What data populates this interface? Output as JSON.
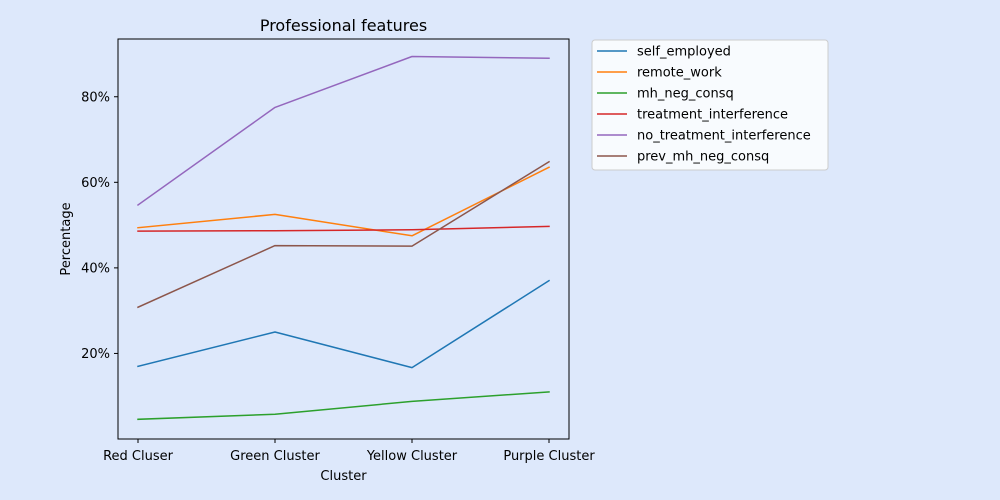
{
  "chart_data": {
    "type": "line",
    "title": "Professional features",
    "xlabel": "Cluster",
    "ylabel": "Percentage",
    "categories": [
      "Red Cluser",
      "Green Cluster",
      "Yellow Cluster",
      "Purple Cluster"
    ],
    "ylim": [
      0.0,
      0.935
    ],
    "yticks": [
      0.2,
      0.4,
      0.6,
      0.8
    ],
    "ytick_labels": [
      "20%",
      "40%",
      "60%",
      "80%"
    ],
    "grid": false,
    "legend_position": "outside-top-right",
    "series": [
      {
        "name": "self_employed",
        "color": "#1f77b4",
        "values": [
          0.17,
          0.25,
          0.167,
          0.37
        ]
      },
      {
        "name": "remote_work",
        "color": "#ff7f0e",
        "values": [
          0.494,
          0.525,
          0.475,
          0.635
        ]
      },
      {
        "name": "mh_neg_consq",
        "color": "#2ca02c",
        "values": [
          0.046,
          0.058,
          0.088,
          0.11
        ]
      },
      {
        "name": "treatment_interference",
        "color": "#d62728",
        "values": [
          0.486,
          0.487,
          0.489,
          0.497
        ]
      },
      {
        "name": "no_treatment_interference",
        "color": "#9467bd",
        "values": [
          0.547,
          0.775,
          0.894,
          0.89
        ]
      },
      {
        "name": "prev_mh_neg_consq",
        "color": "#8c564b",
        "values": [
          0.308,
          0.452,
          0.451,
          0.648
        ]
      }
    ]
  }
}
